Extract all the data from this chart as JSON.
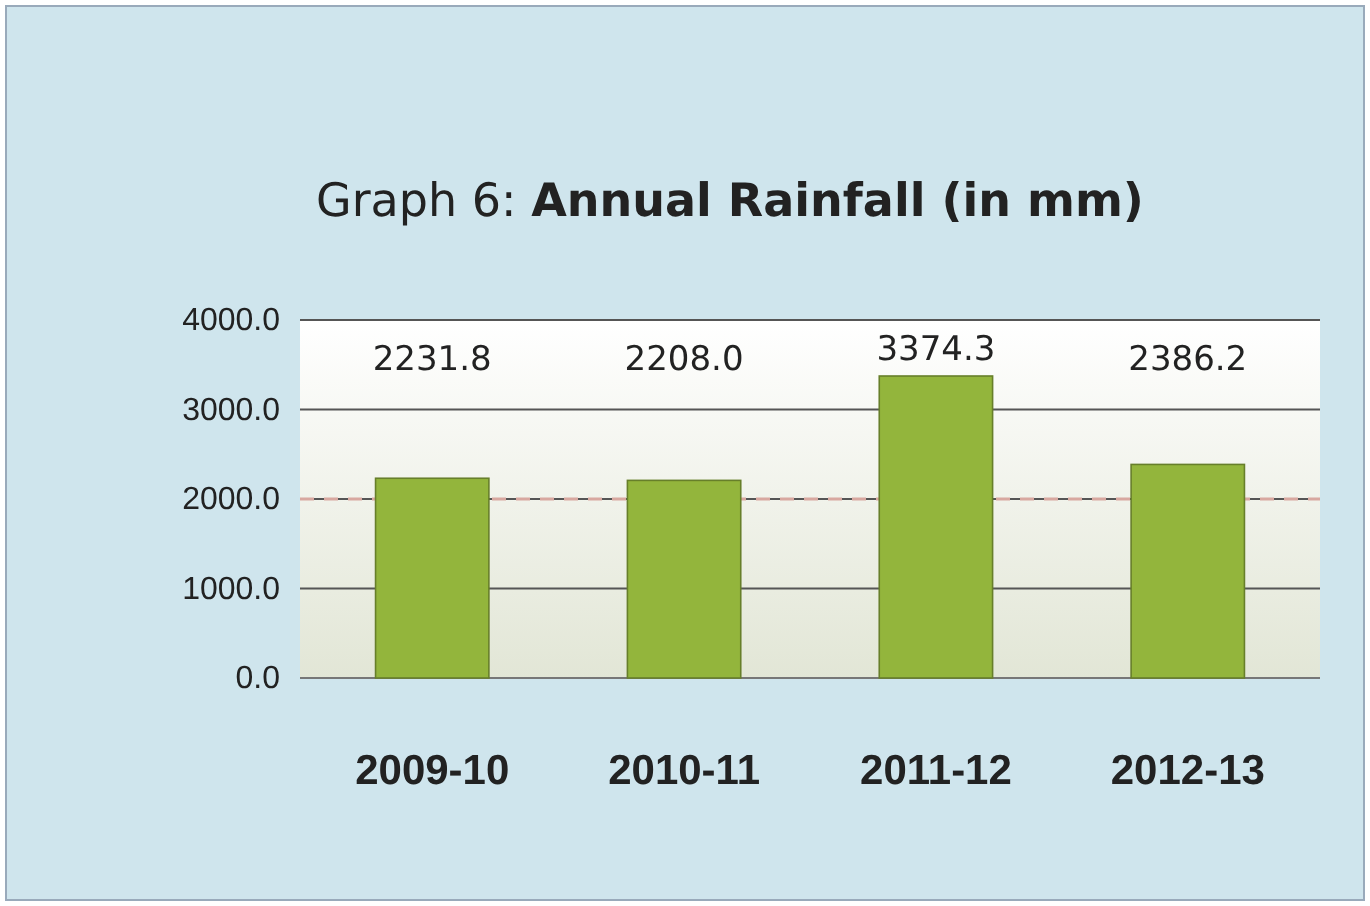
{
  "chart_data": {
    "type": "bar",
    "title": "Graph 6: Annual Rainfall (in mm)",
    "categories": [
      "2009-10",
      "2010-11",
      "2011-12",
      "2012-13"
    ],
    "values": [
      2231.8,
      2208.0,
      3374.3,
      2386.2
    ],
    "value_labels": [
      "2231.8",
      "2208.0",
      "3374.3",
      "2386.2"
    ],
    "color": "#93b53c",
    "ylim": [
      0,
      4000
    ],
    "yticks": [
      {
        "value": 0,
        "label": "0.0"
      },
      {
        "value": 1000,
        "label": "1000.0"
      },
      {
        "value": 2000,
        "label": "2000.0"
      },
      {
        "value": 3000,
        "label": "3000.0"
      },
      {
        "value": 4000,
        "label": "4000.0"
      }
    ],
    "grid": "y",
    "ref_lines": [
      {
        "axis": "y",
        "value": 2000,
        "label": null,
        "color": "#d8a8a0",
        "line_style": "dashed"
      }
    ]
  }
}
